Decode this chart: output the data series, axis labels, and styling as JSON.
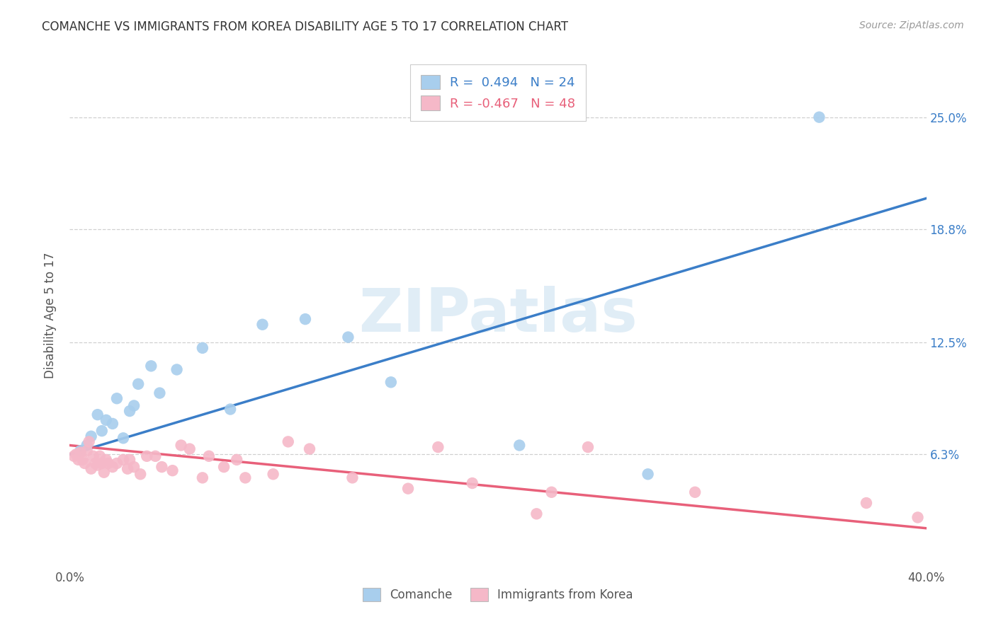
{
  "title": "COMANCHE VS IMMIGRANTS FROM KOREA DISABILITY AGE 5 TO 17 CORRELATION CHART",
  "source": "Source: ZipAtlas.com",
  "ylabel": "Disability Age 5 to 17",
  "xlim": [
    0.0,
    0.4
  ],
  "ylim": [
    0.0,
    0.28
  ],
  "ytick_vals": [
    0.063,
    0.125,
    0.188,
    0.25
  ],
  "ytick_labels": [
    "6.3%",
    "12.5%",
    "18.8%",
    "25.0%"
  ],
  "grid_color": "#d0d0d0",
  "background_color": "#ffffff",
  "watermark": "ZIPatlas",
  "blue_color": "#A8CEED",
  "pink_color": "#F5B8C8",
  "blue_line_color": "#3B7EC8",
  "pink_line_color": "#E8607A",
  "blue_label": "Comanche",
  "pink_label": "Immigrants from Korea",
  "blue_R": 0.494,
  "blue_N": 24,
  "pink_R": -0.467,
  "pink_N": 48,
  "blue_line_x0": 0.0,
  "blue_line_y0": 0.063,
  "blue_line_x1": 0.4,
  "blue_line_y1": 0.205,
  "pink_line_x0": 0.0,
  "pink_line_y0": 0.068,
  "pink_line_x1": 0.4,
  "pink_line_y1": 0.022,
  "blue_x": [
    0.005,
    0.008,
    0.01,
    0.013,
    0.015,
    0.017,
    0.02,
    0.022,
    0.025,
    0.028,
    0.03,
    0.032,
    0.038,
    0.042,
    0.05,
    0.062,
    0.075,
    0.09,
    0.11,
    0.13,
    0.15,
    0.21,
    0.27,
    0.35
  ],
  "blue_y": [
    0.065,
    0.068,
    0.073,
    0.085,
    0.076,
    0.082,
    0.08,
    0.094,
    0.072,
    0.087,
    0.09,
    0.102,
    0.112,
    0.097,
    0.11,
    0.122,
    0.088,
    0.135,
    0.138,
    0.128,
    0.103,
    0.068,
    0.052,
    0.25
  ],
  "pink_x": [
    0.002,
    0.003,
    0.004,
    0.005,
    0.006,
    0.007,
    0.008,
    0.009,
    0.01,
    0.011,
    0.012,
    0.013,
    0.014,
    0.015,
    0.016,
    0.017,
    0.018,
    0.02,
    0.022,
    0.025,
    0.027,
    0.028,
    0.03,
    0.033,
    0.036,
    0.04,
    0.043,
    0.048,
    0.052,
    0.056,
    0.062,
    0.065,
    0.072,
    0.078,
    0.082,
    0.095,
    0.102,
    0.112,
    0.132,
    0.158,
    0.172,
    0.188,
    0.218,
    0.225,
    0.242,
    0.292,
    0.372,
    0.396
  ],
  "pink_y": [
    0.062,
    0.063,
    0.06,
    0.064,
    0.06,
    0.058,
    0.065,
    0.07,
    0.055,
    0.062,
    0.058,
    0.057,
    0.062,
    0.058,
    0.053,
    0.06,
    0.058,
    0.056,
    0.058,
    0.06,
    0.055,
    0.06,
    0.056,
    0.052,
    0.062,
    0.062,
    0.056,
    0.054,
    0.068,
    0.066,
    0.05,
    0.062,
    0.056,
    0.06,
    0.05,
    0.052,
    0.07,
    0.066,
    0.05,
    0.044,
    0.067,
    0.047,
    0.03,
    0.042,
    0.067,
    0.042,
    0.036,
    0.028
  ]
}
